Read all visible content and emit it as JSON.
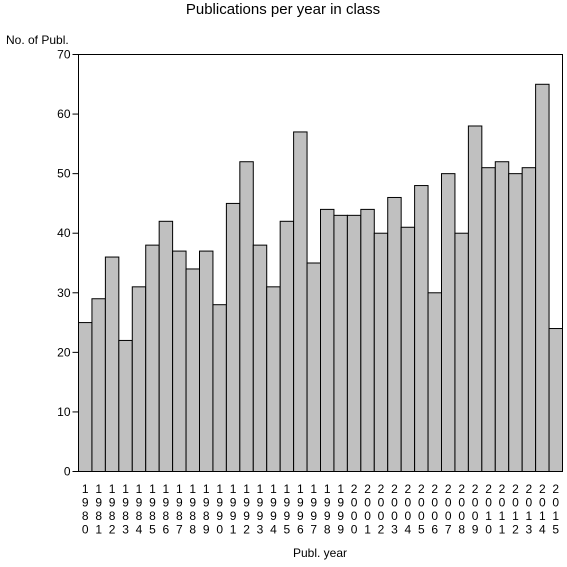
{
  "chart_data": {
    "type": "bar",
    "title": "Publications per year in class",
    "ylabel": "No. of Publ.",
    "xlabel": "Publ. year",
    "ylim": [
      0,
      70
    ],
    "yticks": [
      0,
      10,
      20,
      30,
      40,
      50,
      60,
      70
    ],
    "grid": false,
    "bar_color": "#c0c0c0",
    "edge_color": "#000000",
    "categories": [
      "1980",
      "1981",
      "1982",
      "1983",
      "1984",
      "1985",
      "1986",
      "1987",
      "1988",
      "1989",
      "1990",
      "1991",
      "1992",
      "1993",
      "1994",
      "1995",
      "1996",
      "1997",
      "1998",
      "1999",
      "2000",
      "2001",
      "2002",
      "2003",
      "2004",
      "2005",
      "2006",
      "2007",
      "2008",
      "2009",
      "2010",
      "2011",
      "2012",
      "2013",
      "2014",
      "2015"
    ],
    "values": [
      25,
      29,
      36,
      22,
      31,
      38,
      42,
      37,
      34,
      37,
      28,
      45,
      52,
      38,
      31,
      42,
      57,
      35,
      44,
      43,
      43,
      44,
      40,
      46,
      41,
      48,
      30,
      50,
      40,
      58,
      51,
      52,
      50,
      51,
      65,
      24
    ]
  }
}
